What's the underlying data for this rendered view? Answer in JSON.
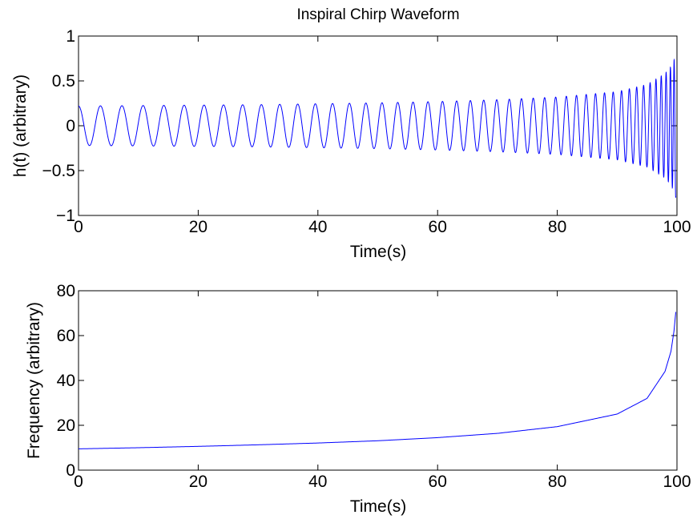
{
  "colors": {
    "line": "#0000ff",
    "axes": "#000000",
    "background": "#ffffff"
  },
  "chart_data": [
    {
      "type": "line",
      "title": "Inspiral Chirp Waveform",
      "xlabel": "Time(s)",
      "ylabel": "h(t) (arbitrary)",
      "xlim": [
        0,
        100
      ],
      "ylim": [
        -1,
        1
      ],
      "xticks": [
        0,
        20,
        40,
        60,
        80,
        100
      ],
      "xtick_labels": [
        "0",
        "20",
        "40",
        "60",
        "80",
        "100"
      ],
      "yticks": [
        -1,
        -0.5,
        0,
        0.5,
        1
      ],
      "ytick_labels": [
        "−1",
        "−0.5",
        "0",
        "0.5",
        "1"
      ],
      "grid": false,
      "series": [
        {
          "description_values": "h(t) oscillates with slowly rising frequency and amplitude",
          "x": [
            0,
            10,
            20,
            30,
            40,
            50,
            60,
            70,
            80,
            90,
            95,
            98,
            99,
            99.5,
            99.8
          ],
          "frequency": [
            9.5,
            10.0,
            10.6,
            11.3,
            12.1,
            13.1,
            14.5,
            16.4,
            19.4,
            25.0,
            32.0,
            44.0,
            53.0,
            62.0,
            70.5
          ],
          "amplitude": [
            0.22,
            0.225,
            0.23,
            0.235,
            0.245,
            0.255,
            0.27,
            0.29,
            0.32,
            0.38,
            0.46,
            0.58,
            0.66,
            0.73,
            0.8
          ]
        }
      ]
    },
    {
      "type": "line",
      "title": "",
      "xlabel": "Time(s)",
      "ylabel": "Frequency (arbitrary)",
      "xlim": [
        0,
        100
      ],
      "ylim": [
        0,
        80
      ],
      "xticks": [
        0,
        20,
        40,
        60,
        80,
        100
      ],
      "xtick_labels": [
        "0",
        "20",
        "40",
        "60",
        "80",
        "100"
      ],
      "yticks": [
        0,
        20,
        40,
        60,
        80
      ],
      "ytick_labels": [
        "0",
        "20",
        "40",
        "60",
        "80"
      ],
      "grid": false,
      "series": [
        {
          "x": [
            0,
            10,
            20,
            30,
            40,
            50,
            60,
            70,
            80,
            90,
            95,
            98,
            99,
            99.5,
            99.8
          ],
          "y": [
            9.5,
            10.0,
            10.6,
            11.3,
            12.1,
            13.1,
            14.5,
            16.4,
            19.4,
            25.0,
            32.0,
            44.0,
            53.0,
            62.0,
            70.5
          ]
        }
      ]
    }
  ]
}
